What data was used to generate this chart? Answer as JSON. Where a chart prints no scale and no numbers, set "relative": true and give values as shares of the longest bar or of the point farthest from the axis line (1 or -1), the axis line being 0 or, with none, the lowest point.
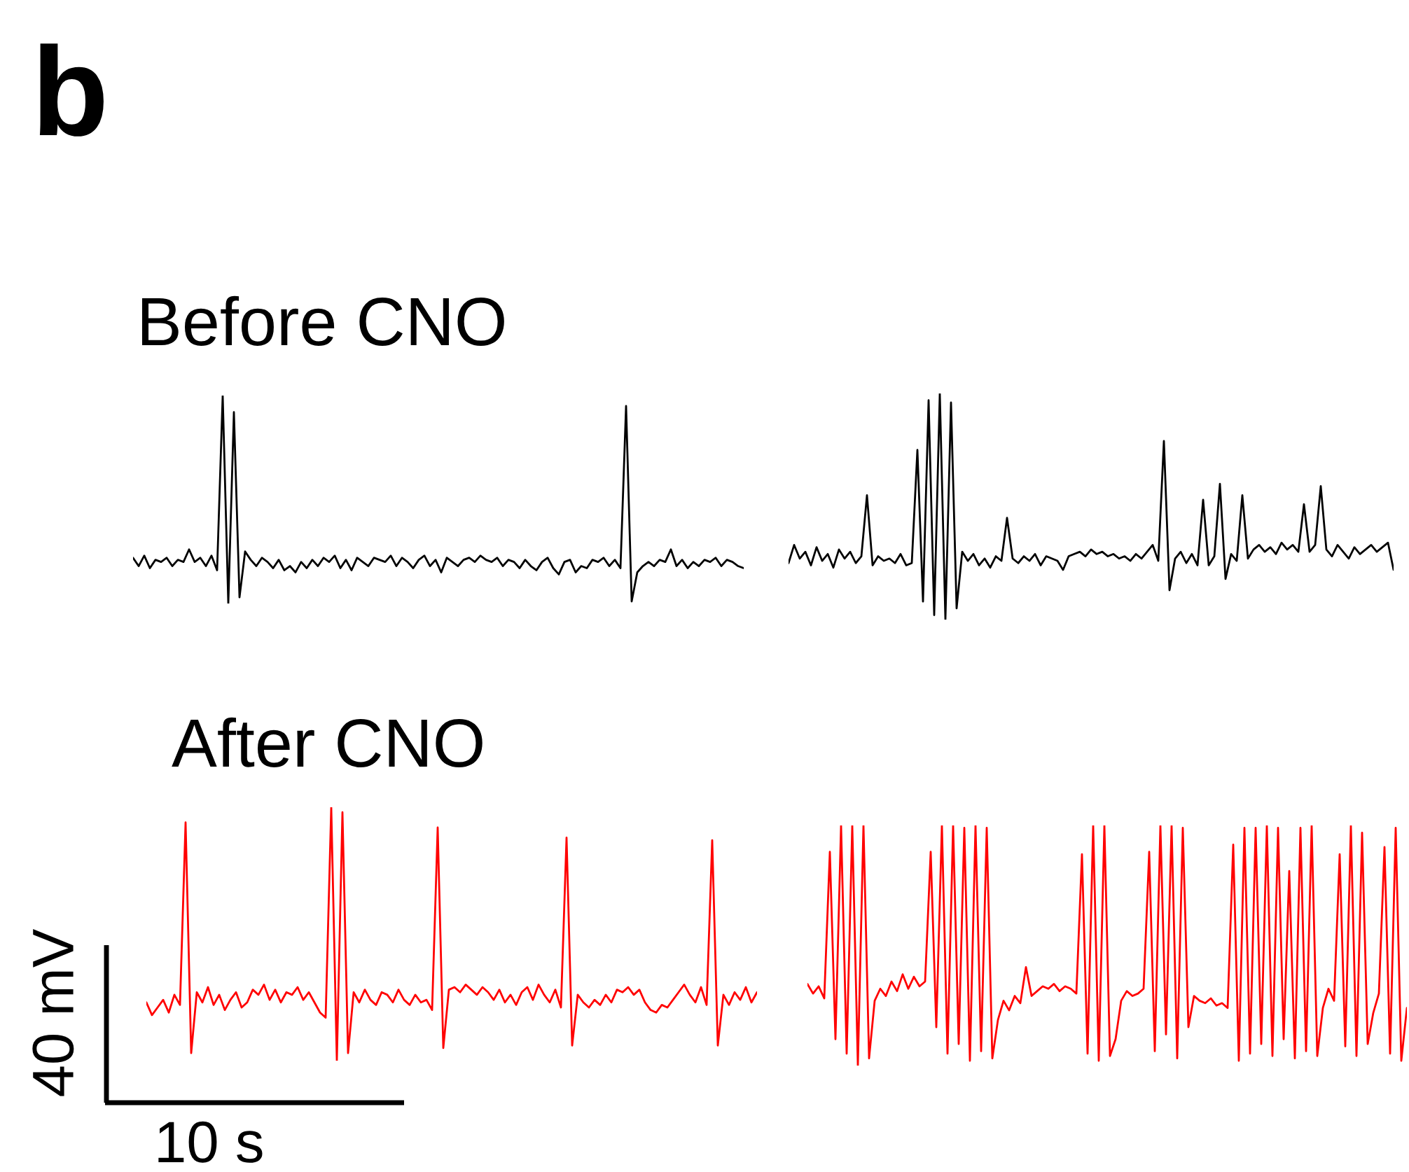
{
  "chart_data": [
    {
      "type": "line",
      "relative": true,
      "title": "Before CNO",
      "annotations": [
        "b"
      ],
      "categories": [
        null,
        null,
        null,
        null,
        null,
        null,
        null,
        null,
        null,
        null,
        null,
        null,
        null,
        null,
        null,
        null,
        null,
        null,
        null,
        null,
        null,
        null,
        null,
        null,
        null,
        null,
        null,
        null,
        null,
        null,
        null,
        null,
        null,
        null,
        null,
        null,
        null,
        null,
        null,
        null,
        null,
        null,
        null,
        null,
        null,
        null,
        null,
        null,
        null,
        null,
        null,
        null,
        null,
        null,
        null,
        null,
        null,
        null,
        null,
        null,
        null,
        null,
        null,
        null,
        null,
        null,
        null,
        null,
        null,
        null,
        null,
        null,
        null,
        null,
        null,
        null,
        null,
        null,
        null,
        null,
        null,
        null,
        null,
        null,
        null,
        null,
        null,
        null,
        null,
        null,
        null,
        null,
        null,
        null,
        null,
        null,
        null,
        null,
        null,
        null,
        null,
        null,
        null,
        null,
        null,
        null,
        null,
        null,
        null,
        null
      ],
      "series": [
        {
          "color": "#000000",
          "values": [
            0.22,
            0.18,
            0.23,
            0.17,
            0.21,
            0.2,
            0.22,
            0.18,
            0.21,
            0.2,
            0.26,
            0.2,
            0.22,
            0.18,
            0.23,
            0.16,
            1.0,
            0.0,
            0.92,
            0.03,
            0.25,
            0.21,
            0.18,
            0.22,
            0.2,
            0.17,
            0.21,
            0.16,
            0.18,
            0.15,
            0.2,
            0.17,
            0.21,
            0.18,
            0.22,
            0.2,
            0.23,
            0.17,
            0.21,
            0.16,
            0.22,
            0.2,
            0.18,
            0.22,
            0.21,
            0.2,
            0.23,
            0.18,
            0.22,
            0.2,
            0.17,
            0.21,
            0.23,
            0.18,
            0.21,
            0.15,
            0.22,
            0.2,
            0.18,
            0.21,
            0.22,
            0.2,
            0.23,
            0.21,
            0.2,
            0.22,
            0.18,
            0.21,
            0.2,
            0.17,
            0.21,
            0.18,
            0.16,
            0.2,
            0.22,
            0.17,
            0.14,
            0.2,
            0.21,
            0.15,
            0.18,
            0.17,
            0.21,
            0.2,
            0.22,
            0.18,
            0.21,
            0.17,
            0.95,
            0.01,
            0.15,
            0.18,
            0.2,
            0.18,
            0.21,
            0.2,
            0.26,
            0.18,
            0.21,
            0.17,
            0.2,
            0.18,
            0.21,
            0.2,
            0.22,
            0.18,
            0.21,
            0.2,
            0.18,
            0.17
          ]
        }
      ]
    },
    {
      "type": "line",
      "relative": true,
      "categories": [
        null,
        null,
        null,
        null,
        null,
        null,
        null,
        null,
        null,
        null,
        null,
        null,
        null,
        null,
        null,
        null,
        null,
        null,
        null,
        null,
        null,
        null,
        null,
        null,
        null,
        null,
        null,
        null,
        null,
        null,
        null,
        null,
        null,
        null,
        null,
        null,
        null,
        null,
        null,
        null,
        null,
        null,
        null,
        null,
        null,
        null,
        null,
        null,
        null,
        null,
        null,
        null,
        null,
        null,
        null,
        null,
        null,
        null,
        null,
        null,
        null,
        null,
        null,
        null,
        null,
        null,
        null,
        null,
        null,
        null,
        null,
        null,
        null,
        null,
        null,
        null,
        null,
        null,
        null,
        null,
        null,
        null,
        null,
        null,
        null,
        null,
        null,
        null,
        null,
        null,
        null,
        null,
        null,
        null,
        null,
        null,
        null,
        null,
        null,
        null,
        null,
        null,
        null,
        null,
        null,
        null,
        null,
        null,
        null
      ],
      "series": [
        {
          "color": "#000000",
          "values": [
            0.25,
            0.33,
            0.27,
            0.3,
            0.24,
            0.32,
            0.26,
            0.29,
            0.23,
            0.31,
            0.27,
            0.3,
            0.25,
            0.28,
            0.55,
            0.24,
            0.28,
            0.26,
            0.27,
            0.25,
            0.29,
            0.24,
            0.25,
            0.75,
            0.08,
            0.97,
            0.02,
            1.0,
            0.0,
            0.96,
            0.05,
            0.3,
            0.26,
            0.29,
            0.24,
            0.27,
            0.23,
            0.28,
            0.26,
            0.45,
            0.27,
            0.25,
            0.28,
            0.26,
            0.29,
            0.24,
            0.28,
            0.27,
            0.26,
            0.22,
            0.28,
            0.29,
            0.3,
            0.28,
            0.31,
            0.29,
            0.3,
            0.28,
            0.29,
            0.27,
            0.28,
            0.26,
            0.29,
            0.27,
            0.3,
            0.33,
            0.26,
            0.79,
            0.13,
            0.27,
            0.3,
            0.25,
            0.29,
            0.24,
            0.53,
            0.24,
            0.28,
            0.6,
            0.18,
            0.29,
            0.26,
            0.55,
            0.27,
            0.31,
            0.33,
            0.3,
            0.32,
            0.29,
            0.34,
            0.31,
            0.33,
            0.3,
            0.51,
            0.3,
            0.33,
            0.59,
            0.31,
            0.28,
            0.33,
            0.3,
            0.27,
            0.32,
            0.29,
            0.31,
            0.33,
            0.3,
            0.32,
            0.34,
            0.22
          ]
        }
      ]
    },
    {
      "type": "line",
      "relative": true,
      "title": "After CNO",
      "annotations": [
        "40 mV",
        "10 s"
      ],
      "categories": [
        null,
        null,
        null,
        null,
        null,
        null,
        null,
        null,
        null,
        null,
        null,
        null,
        null,
        null,
        null,
        null,
        null,
        null,
        null,
        null,
        null,
        null,
        null,
        null,
        null,
        null,
        null,
        null,
        null,
        null,
        null,
        null,
        null,
        null,
        null,
        null,
        null,
        null,
        null,
        null,
        null,
        null,
        null,
        null,
        null,
        null,
        null,
        null,
        null,
        null,
        null,
        null,
        null,
        null,
        null,
        null,
        null,
        null,
        null,
        null,
        null,
        null,
        null,
        null,
        null,
        null,
        null,
        null,
        null,
        null,
        null,
        null,
        null,
        null,
        null,
        null,
        null,
        null,
        null,
        null,
        null,
        null,
        null,
        null,
        null,
        null,
        null,
        null,
        null,
        null,
        null,
        null,
        null,
        null,
        null,
        null,
        null,
        null,
        null,
        null,
        null,
        null,
        null,
        null,
        null,
        null,
        null,
        null,
        null,
        null
      ],
      "series": [
        {
          "color": "#ff0000",
          "values": [
            0.23,
            0.18,
            0.21,
            0.24,
            0.19,
            0.26,
            0.22,
            0.94,
            0.03,
            0.27,
            0.23,
            0.29,
            0.22,
            0.26,
            0.2,
            0.24,
            0.27,
            0.21,
            0.23,
            0.28,
            0.26,
            0.3,
            0.24,
            0.28,
            0.23,
            0.27,
            0.26,
            0.29,
            0.24,
            0.27,
            0.23,
            0.19,
            0.17,
            1.0,
            0.0,
            0.98,
            0.03,
            0.27,
            0.23,
            0.28,
            0.24,
            0.22,
            0.27,
            0.26,
            0.23,
            0.28,
            0.24,
            0.22,
            0.26,
            0.23,
            0.24,
            0.2,
            0.92,
            0.05,
            0.28,
            0.29,
            0.27,
            0.3,
            0.28,
            0.26,
            0.29,
            0.27,
            0.24,
            0.28,
            0.23,
            0.26,
            0.22,
            0.27,
            0.29,
            0.24,
            0.3,
            0.26,
            0.23,
            0.28,
            0.21,
            0.88,
            0.06,
            0.26,
            0.23,
            0.21,
            0.24,
            0.22,
            0.26,
            0.23,
            0.28,
            0.27,
            0.29,
            0.26,
            0.28,
            0.23,
            0.2,
            0.19,
            0.22,
            0.21,
            0.24,
            0.27,
            0.3,
            0.26,
            0.23,
            0.29,
            0.22,
            0.87,
            0.06,
            0.26,
            0.22,
            0.27,
            0.24,
            0.29,
            0.23,
            0.27
          ]
        }
      ]
    },
    {
      "type": "line",
      "relative": true,
      "categories": [
        null,
        null,
        null,
        null,
        null,
        null,
        null,
        null,
        null,
        null,
        null,
        null,
        null,
        null,
        null,
        null,
        null,
        null,
        null,
        null,
        null,
        null,
        null,
        null,
        null,
        null,
        null,
        null,
        null,
        null,
        null,
        null,
        null,
        null,
        null,
        null,
        null,
        null,
        null,
        null,
        null,
        null,
        null,
        null,
        null,
        null,
        null,
        null,
        null,
        null,
        null,
        null,
        null,
        null,
        null,
        null,
        null,
        null,
        null,
        null,
        null,
        null,
        null,
        null,
        null,
        null,
        null,
        null,
        null,
        null,
        null,
        null,
        null,
        null,
        null,
        null,
        null,
        null,
        null,
        null,
        null,
        null,
        null,
        null,
        null,
        null,
        null,
        null,
        null,
        null,
        null,
        null,
        null,
        null,
        null,
        null,
        null,
        null,
        null,
        null,
        null,
        null,
        null,
        null,
        null,
        null,
        null,
        null
      ],
      "series": [
        {
          "color": "#ff0000",
          "values": [
            0.34,
            0.3,
            0.33,
            0.28,
            0.89,
            0.11,
            1.0,
            0.05,
            1.0,
            0.0,
            1.0,
            0.03,
            0.27,
            0.32,
            0.29,
            0.35,
            0.31,
            0.38,
            0.32,
            0.37,
            0.33,
            0.35,
            0.89,
            0.16,
            1.0,
            0.05,
            1.0,
            0.09,
            0.99,
            0.02,
            1.0,
            0.06,
            0.99,
            0.03,
            0.19,
            0.27,
            0.23,
            0.29,
            0.26,
            0.41,
            0.29,
            0.31,
            0.33,
            0.32,
            0.34,
            0.31,
            0.33,
            0.32,
            0.3,
            0.88,
            0.05,
            1.0,
            0.02,
            1.0,
            0.04,
            0.11,
            0.27,
            0.31,
            0.29,
            0.3,
            0.32,
            0.89,
            0.06,
            1.0,
            0.13,
            1.0,
            0.03,
            0.99,
            0.16,
            0.29,
            0.27,
            0.26,
            0.28,
            0.25,
            0.26,
            0.24,
            0.92,
            0.02,
            0.99,
            0.05,
            0.99,
            0.09,
            1.0,
            0.04,
            0.99,
            0.11,
            0.81,
            0.03,
            0.99,
            0.06,
            1.0,
            0.04,
            0.24,
            0.32,
            0.27,
            0.88,
            0.08,
            1.0,
            0.04,
            0.97,
            0.09,
            0.22,
            0.3,
            0.91,
            0.05,
            0.99,
            0.02,
            0.24
          ]
        }
      ]
    }
  ]
}
